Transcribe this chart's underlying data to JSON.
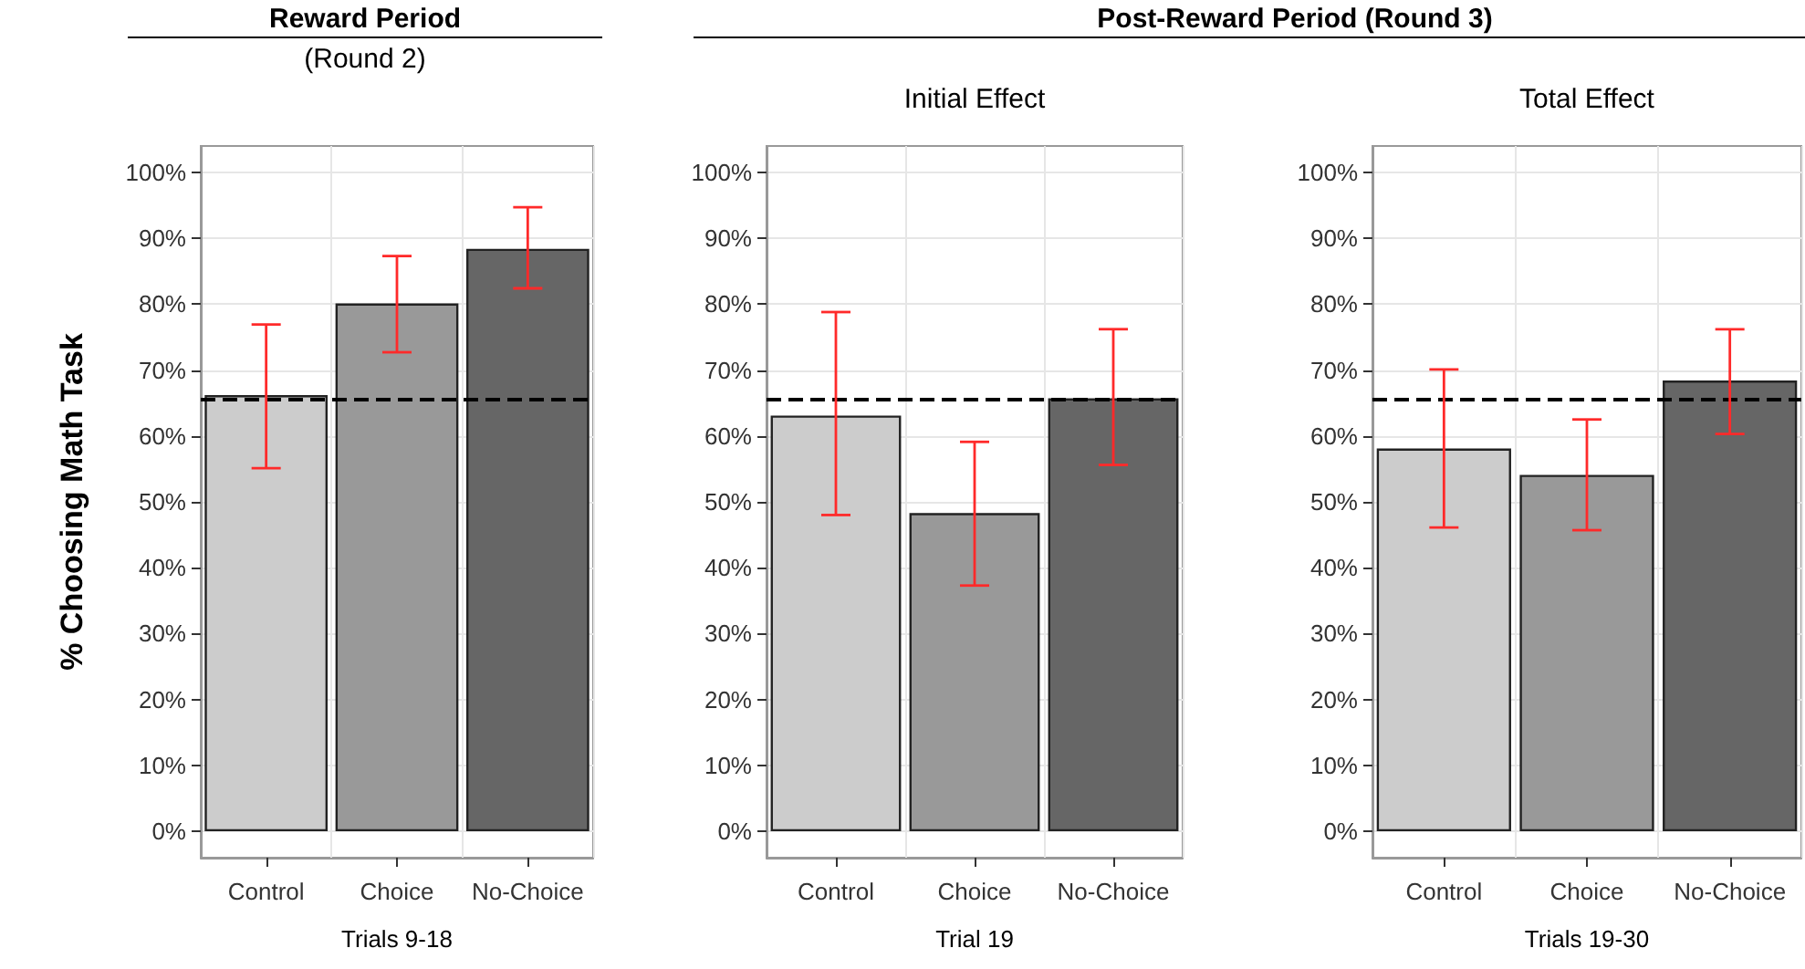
{
  "chart_data": [
    {
      "type": "bar",
      "title": "Reward Period",
      "subtitle": "(Round 2)",
      "xlabel": "Trials 9-18",
      "ylabel": "% Choosing Math Task",
      "categories": [
        "Control",
        "Choice",
        "No-Choice"
      ],
      "values": [
        66.2,
        80.1,
        88.4
      ],
      "colors": [
        "#cccccc",
        "#999999",
        "#666666"
      ],
      "errors": [
        [
          55.1,
          76.9
        ],
        [
          72.7,
          87.3
        ],
        [
          82.4,
          94.7
        ]
      ],
      "ylim": [
        -4,
        104
      ],
      "yticks": [
        {
          "value": 0,
          "label": "0%"
        },
        {
          "value": 10,
          "label": "10%"
        },
        {
          "value": 20,
          "label": "20%"
        },
        {
          "value": 30,
          "label": "30%"
        },
        {
          "value": 40,
          "label": "40%"
        },
        {
          "value": 50,
          "label": "50%"
        },
        {
          "value": 60,
          "label": "60%"
        },
        {
          "value": 70,
          "label": "70%"
        },
        {
          "value": 80,
          "label": "80%"
        },
        {
          "value": 90,
          "label": "90%"
        },
        {
          "value": 100,
          "label": "100%"
        }
      ],
      "grid": true,
      "ref_lines": [
        {
          "axis": "y",
          "value": 65.6,
          "line_style": "dashed",
          "color": "#000000"
        }
      ]
    },
    {
      "type": "bar",
      "title": "Post-Reward Period (Round 3)",
      "subtitle": "Initial Effect",
      "xlabel": "Trial 19",
      "categories": [
        "Control",
        "Choice",
        "No-Choice"
      ],
      "values": [
        63.1,
        48.3,
        65.7
      ],
      "colors": [
        "#cccccc",
        "#999999",
        "#666666"
      ],
      "errors": [
        [
          48.0,
          78.8
        ],
        [
          37.3,
          59.1
        ],
        [
          55.6,
          76.2
        ]
      ],
      "ylim": [
        -4,
        104
      ],
      "yticks": [
        {
          "value": 0,
          "label": "0%"
        },
        {
          "value": 10,
          "label": "10%"
        },
        {
          "value": 20,
          "label": "20%"
        },
        {
          "value": 30,
          "label": "30%"
        },
        {
          "value": 40,
          "label": "40%"
        },
        {
          "value": 50,
          "label": "50%"
        },
        {
          "value": 60,
          "label": "60%"
        },
        {
          "value": 70,
          "label": "70%"
        },
        {
          "value": 80,
          "label": "80%"
        },
        {
          "value": 90,
          "label": "90%"
        },
        {
          "value": 100,
          "label": "100%"
        }
      ],
      "grid": true,
      "ref_lines": [
        {
          "axis": "y",
          "value": 65.6,
          "line_style": "dashed",
          "color": "#000000"
        }
      ]
    },
    {
      "type": "bar",
      "subtitle": "Total Effect",
      "xlabel": "Trials 19-30",
      "categories": [
        "Control",
        "Choice",
        "No-Choice"
      ],
      "values": [
        58.1,
        54.1,
        68.4
      ],
      "colors": [
        "#cccccc",
        "#999999",
        "#666666"
      ],
      "errors": [
        [
          46.1,
          70.1
        ],
        [
          45.7,
          62.5
        ],
        [
          60.3,
          76.2
        ]
      ],
      "ylim": [
        -4,
        104
      ],
      "yticks": [
        {
          "value": 0,
          "label": "0%"
        },
        {
          "value": 10,
          "label": "10%"
        },
        {
          "value": 20,
          "label": "20%"
        },
        {
          "value": 30,
          "label": "30%"
        },
        {
          "value": 40,
          "label": "40%"
        },
        {
          "value": 50,
          "label": "50%"
        },
        {
          "value": 60,
          "label": "60%"
        },
        {
          "value": 70,
          "label": "70%"
        },
        {
          "value": 80,
          "label": "80%"
        },
        {
          "value": 90,
          "label": "90%"
        },
        {
          "value": 100,
          "label": "100%"
        }
      ],
      "grid": true,
      "ref_lines": [
        {
          "axis": "y",
          "value": 65.6,
          "line_style": "dashed",
          "color": "#000000"
        }
      ]
    }
  ]
}
